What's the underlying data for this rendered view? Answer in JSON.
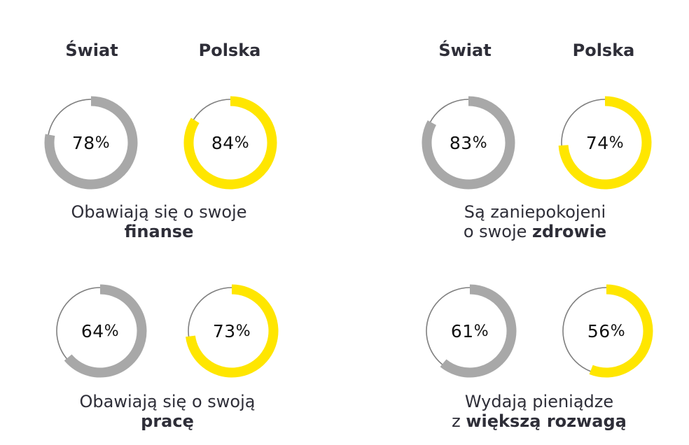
{
  "headers": {
    "left_world": "Świat",
    "left_poland": "Polska",
    "right_world": "Świat",
    "right_poland": "Polska"
  },
  "colors": {
    "world": "#a8a8a8",
    "poland": "#ffe600",
    "track": "#7f7f7f"
  },
  "chart_data": [
    {
      "type": "pie",
      "caption_line1": "Obawiają się o swoje",
      "caption_line2_prefix": "",
      "caption_bold": "finanse",
      "series": [
        {
          "name": "Świat",
          "value": 78,
          "label": "78"
        },
        {
          "name": "Polska",
          "value": 84,
          "label": "84"
        }
      ]
    },
    {
      "type": "pie",
      "caption_line1": "Są zaniepokojeni",
      "caption_line2_prefix": "o swoje ",
      "caption_bold": "zdrowie",
      "series": [
        {
          "name": "Świat",
          "value": 83,
          "label": "83"
        },
        {
          "name": "Polska",
          "value": 74,
          "label": "74"
        }
      ]
    },
    {
      "type": "pie",
      "caption_line1": "Obawiają się o swoją",
      "caption_line2_prefix": "",
      "caption_bold": "pracę",
      "series": [
        {
          "name": "Świat",
          "value": 64,
          "label": "64"
        },
        {
          "name": "Polska",
          "value": 73,
          "label": "73"
        }
      ]
    },
    {
      "type": "pie",
      "caption_line1": "Wydają pieniądze",
      "caption_line2_prefix": "z ",
      "caption_bold": "większą rozwagą",
      "series": [
        {
          "name": "Świat",
          "value": 61,
          "label": "61"
        },
        {
          "name": "Polska",
          "value": 56,
          "label": "56"
        }
      ]
    }
  ],
  "percent_sign": "%"
}
